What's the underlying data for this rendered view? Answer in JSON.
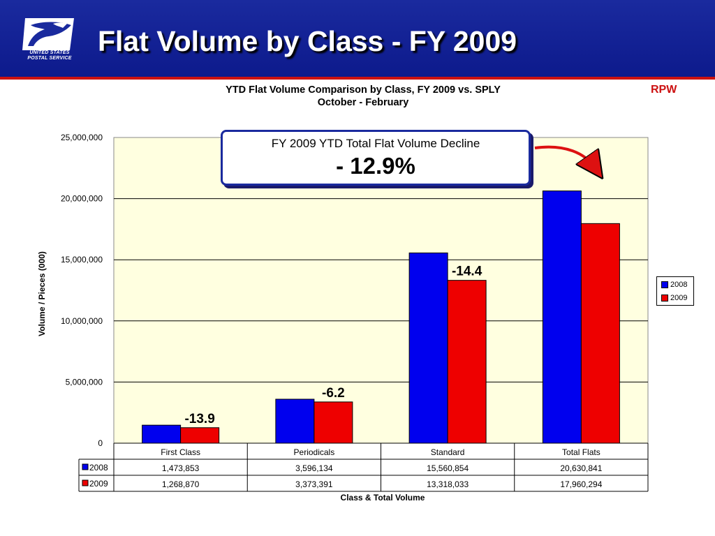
{
  "header": {
    "title": "Flat Volume by Class - FY 2009",
    "logo_text_line1": "UNITED STATES",
    "logo_text_line2": "POSTAL SERVICE",
    "tag": "RPW",
    "icon": "usps-eagle-logo",
    "colors": {
      "banner": "#1a2a9e",
      "rule": "#cc1111",
      "tag": "#cc1111"
    }
  },
  "callout": {
    "label": "FY 2009 YTD Total Flat Volume Decline",
    "value": "- 12.9%"
  },
  "chart_data": {
    "type": "bar",
    "title": "YTD Flat Volume Comparison by Class, FY 2009 vs. SPLY",
    "subtitle": "October - February",
    "xlabel": "Class & Total Volume",
    "ylabel": "Volume / Pieces (000)",
    "ylim": [
      0,
      25000000
    ],
    "yticks": [
      "0",
      "5,000,000",
      "10,000,000",
      "15,000,000",
      "20,000,000",
      "25,000,000"
    ],
    "grid": true,
    "legend_position": "right",
    "categories": [
      "First Class",
      "Periodicals",
      "Standard",
      "Total Flats"
    ],
    "series": [
      {
        "name": "2008",
        "color": "#0000ee",
        "values": [
          1473853,
          3596134,
          15560854,
          20630841
        ],
        "labels": [
          "1,473,853",
          "3,596,134",
          "15,560,854",
          "20,630,841"
        ]
      },
      {
        "name": "2009",
        "color": "#ee0000",
        "values": [
          1268870,
          3373391,
          13318033,
          17960294
        ],
        "labels": [
          "1,268,870",
          "3,373,391",
          "13,318,033",
          "17,960,294"
        ]
      }
    ],
    "annotations": [
      "-13.9",
      "-6.2",
      "-14.4",
      ""
    ],
    "plot_background": "#ffffe0"
  }
}
